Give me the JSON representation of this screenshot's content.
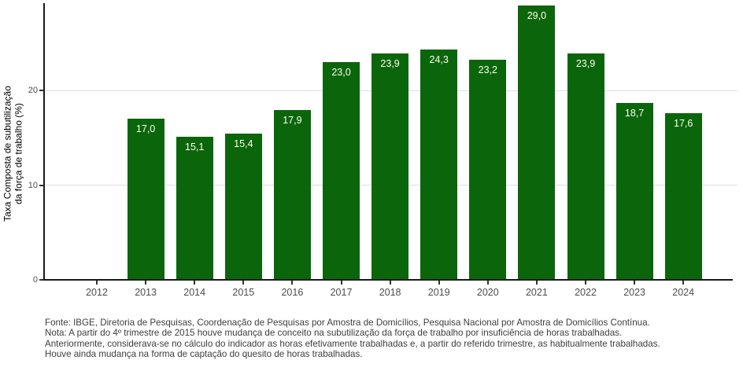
{
  "chart_data": {
    "type": "bar",
    "title": "",
    "xlabel": "",
    "ylabel": "Taxa Composta de subutilização da força de trabalho (%)",
    "ylabel_lines": [
      "Taxa Composta de subutilização",
      "da força de trabalho (%)"
    ],
    "categories": [
      "2012",
      "2013",
      "2014",
      "2015",
      "2016",
      "2017",
      "2018",
      "2019",
      "2020",
      "2021",
      "2022",
      "2023",
      "2024"
    ],
    "values": [
      null,
      17.0,
      15.1,
      15.4,
      17.9,
      23.0,
      23.9,
      24.3,
      23.2,
      29.0,
      23.9,
      18.7,
      17.6
    ],
    "value_labels": [
      "",
      "17,0",
      "15,1",
      "15,4",
      "17,9",
      "23,0",
      "23,9",
      "24,3",
      "23,2",
      "29,0",
      "23,9",
      "18,7",
      "17,6"
    ],
    "ylim": [
      0,
      29.5
    ],
    "yticks": [
      0,
      10,
      20,
      30
    ],
    "gridline_values": [
      10,
      20,
      30
    ],
    "grid": true,
    "legend": false,
    "colors": {
      "bar": "#0B660B",
      "value_label": "#FFFFF0",
      "axis_line": "#1A1A1A",
      "tick_mark": "#333333",
      "tick_label": "#4D4D4D",
      "gridline": "#DEDEDE"
    }
  },
  "footer": {
    "lines": [
      "Fonte: IBGE, Diretoria de Pesquisas, Coordenação de Pesquisas por Amostra de Domicílios, Pesquisa Nacional por Amostra de Domicílios Contínua.",
      "Nota: A partir do 4º trimestre de 2015 houve mudança de conceito na subutilização da força de trabalho por insuficiência de horas trabalhadas.",
      "Anteriormente, considerava-se no cálculo do indicador as horas efetivamente trabalhadas e, a partir do referido trimestre, as habitualmente trabalhadas.",
      "Houve ainda mudança na forma de captação do quesito de horas trabalhadas."
    ]
  }
}
